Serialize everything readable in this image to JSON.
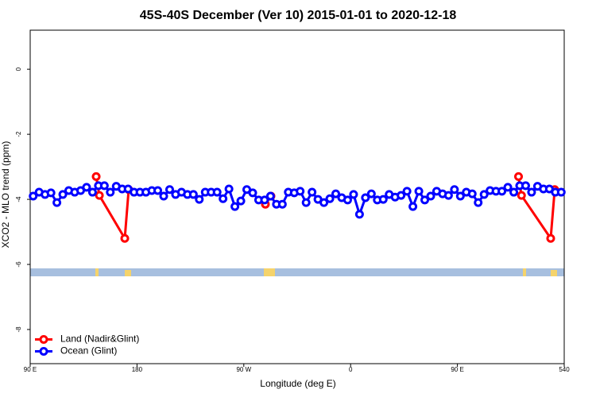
{
  "chart_data": {
    "type": "line",
    "title": "45S-40S December (Ver 10)   2015-01-01 to 2020-12-18",
    "xlabel": "Longitude (deg E)",
    "ylabel": "XCO2 - MLO trend (ppm)",
    "xlim": [
      90,
      540
    ],
    "ylim": [
      -9.05,
      1.2
    ],
    "xticks": [
      {
        "value": 90,
        "label": "90 E"
      },
      180,
      {
        "value": 270,
        "label": "90 W"
      },
      {
        "value": 360,
        "label": "0"
      },
      {
        "value": 450,
        "label": "90 E"
      },
      540
    ],
    "yticks": [
      0,
      -2,
      -4,
      -6,
      -8
    ],
    "legend": "bottomleft",
    "series": [
      {
        "name": "Land (Nadir&Glint)",
        "color": "#ff0000",
        "x": [
          145.6,
          148.3,
          169.7,
          173.0,
          230,
          288.2,
          292.9,
          400,
          501.5,
          504.0,
          528.6,
          532.0
        ],
        "values": [
          -3.3,
          -3.88,
          -5.2,
          -3.7,
          null,
          -4.15,
          -3.9,
          null,
          -3.3,
          -3.88,
          -5.2,
          -3.7
        ]
      },
      {
        "name": "Ocean (Glint)",
        "color": "#0000ff",
        "x": [
          92.5,
          97.5,
          102.5,
          107.5,
          112.5,
          117.5,
          122.5,
          127.5,
          132.5,
          137.5,
          142.5,
          147.5,
          152.5,
          157.5,
          162.5,
          167.5,
          172.5,
          177.5,
          182.5,
          187.5,
          192.5,
          197.5,
          202.5,
          207.5,
          212.5,
          217.5,
          222.5,
          227.5,
          232.5,
          237.5,
          242.5,
          247.5,
          252.5,
          257.5,
          262.5,
          267.5,
          272.5,
          277.5,
          282.5,
          287.5,
          292.5,
          297.5,
          302.5,
          307.5,
          312.5,
          317.5,
          322.5,
          327.5,
          332.5,
          337.5,
          342.5,
          347.5,
          352.5,
          357.5,
          362.5,
          367.5,
          372.5,
          377.5,
          382.5,
          387.5,
          392.5,
          397.5,
          402.5,
          407.5,
          412.5,
          417.5,
          422.5,
          427.5,
          432.5,
          437.5,
          442.5,
          447.5,
          452.5,
          457.5,
          462.5,
          467.5,
          472.5,
          477.5,
          482.5,
          487.5,
          492.5,
          497.5,
          502.5,
          507.5,
          512.5,
          517.5,
          522.5,
          527.5,
          532.5,
          537.5
        ],
        "values": [
          -3.9,
          -3.78,
          -3.85,
          -3.8,
          -4.1,
          -3.85,
          -3.73,
          -3.78,
          -3.73,
          -3.63,
          -3.78,
          -3.58,
          -3.58,
          -3.78,
          -3.6,
          -3.68,
          -3.68,
          -3.78,
          -3.78,
          -3.78,
          -3.73,
          -3.73,
          -3.9,
          -3.7,
          -3.85,
          -3.78,
          -3.85,
          -3.85,
          -4.0,
          -3.78,
          -3.78,
          -3.78,
          -3.98,
          -3.68,
          -4.22,
          -4.05,
          -3.7,
          -3.8,
          -4.02,
          -4.02,
          -3.9,
          -4.15,
          -4.15,
          -3.78,
          -3.8,
          -3.75,
          -4.1,
          -3.78,
          -4.0,
          -4.1,
          -3.98,
          -3.83,
          -3.95,
          -4.02,
          -3.85,
          -4.46,
          -3.95,
          -3.83,
          -4.02,
          -4.0,
          -3.85,
          -3.93,
          -3.88,
          -3.75,
          -4.22,
          -3.75,
          -4.02,
          -3.9,
          -3.75,
          -3.83,
          -3.88,
          -3.7,
          -3.9,
          -3.78,
          -3.83,
          -4.1,
          -3.85,
          -3.73,
          -3.75,
          -3.75,
          -3.63,
          -3.78,
          -3.58,
          -3.58,
          -3.78,
          -3.6,
          -3.68,
          -3.68,
          -3.78,
          -3.78
        ]
      }
    ]
  }
}
